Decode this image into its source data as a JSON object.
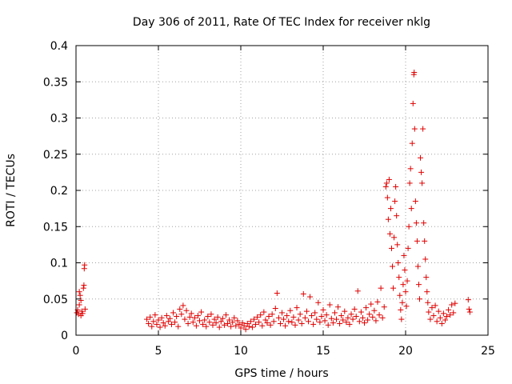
{
  "chart_data": {
    "type": "scatter",
    "title": "Day 306 of 2011, Rate Of TEC Index for receiver nklg",
    "xlabel": "GPS time / hours",
    "ylabel": "ROTI / TECUs",
    "xlim": [
      0,
      25
    ],
    "ylim": [
      0,
      0.4
    ],
    "xticks": [
      0,
      5,
      10,
      15,
      20,
      25
    ],
    "yticks": [
      0,
      0.05,
      0.1,
      0.15,
      0.2,
      0.25,
      0.3,
      0.35,
      0.4
    ],
    "xtick_labels": [
      "0",
      "5",
      "10",
      "15",
      "20",
      "25"
    ],
    "ytick_labels": [
      "0",
      "0.05",
      "0.1",
      "0.15",
      "0.2",
      "0.25",
      "0.3",
      "0.35",
      "0.4"
    ],
    "grid": true,
    "marker": "+",
    "color": "#e00000",
    "series": [
      {
        "name": "ROTI",
        "points": [
          [
            0.05,
            0.031
          ],
          [
            0.1,
            0.035
          ],
          [
            0.15,
            0.029
          ],
          [
            0.2,
            0.042
          ],
          [
            0.25,
            0.055
          ],
          [
            0.3,
            0.048
          ],
          [
            0.35,
            0.033
          ],
          [
            0.4,
            0.03
          ],
          [
            0.45,
            0.065
          ],
          [
            0.48,
            0.069
          ],
          [
            0.5,
            0.092
          ],
          [
            0.52,
            0.097
          ],
          [
            0.55,
            0.036
          ],
          [
            0.2,
            0.06
          ],
          [
            0.3,
            0.027
          ],
          [
            4.3,
            0.022
          ],
          [
            4.4,
            0.016
          ],
          [
            4.5,
            0.025
          ],
          [
            4.6,
            0.012
          ],
          [
            4.7,
            0.019
          ],
          [
            4.8,
            0.028
          ],
          [
            4.9,
            0.015
          ],
          [
            5.0,
            0.021
          ],
          [
            5.1,
            0.011
          ],
          [
            5.2,
            0.024
          ],
          [
            5.3,
            0.017
          ],
          [
            5.4,
            0.013
          ],
          [
            5.5,
            0.027
          ],
          [
            5.6,
            0.019
          ],
          [
            5.7,
            0.023
          ],
          [
            5.8,
            0.015
          ],
          [
            5.9,
            0.031
          ],
          [
            6.0,
            0.018
          ],
          [
            6.1,
            0.026
          ],
          [
            6.2,
            0.012
          ],
          [
            6.3,
            0.036
          ],
          [
            6.4,
            0.029
          ],
          [
            6.5,
            0.041
          ],
          [
            6.6,
            0.022
          ],
          [
            6.7,
            0.034
          ],
          [
            6.8,
            0.016
          ],
          [
            6.9,
            0.025
          ],
          [
            7.0,
            0.03
          ],
          [
            7.1,
            0.018
          ],
          [
            7.2,
            0.024
          ],
          [
            7.3,
            0.013
          ],
          [
            7.4,
            0.027
          ],
          [
            7.5,
            0.02
          ],
          [
            7.6,
            0.032
          ],
          [
            7.7,
            0.015
          ],
          [
            7.8,
            0.021
          ],
          [
            7.9,
            0.012
          ],
          [
            8.0,
            0.026
          ],
          [
            8.1,
            0.018
          ],
          [
            8.2,
            0.029
          ],
          [
            8.3,
            0.014
          ],
          [
            8.4,
            0.022
          ],
          [
            8.5,
            0.017
          ],
          [
            8.6,
            0.025
          ],
          [
            8.7,
            0.011
          ],
          [
            8.8,
            0.019
          ],
          [
            8.9,
            0.023
          ],
          [
            9.0,
            0.014
          ],
          [
            9.1,
            0.028
          ],
          [
            9.2,
            0.016
          ],
          [
            9.3,
            0.021
          ],
          [
            9.4,
            0.012
          ],
          [
            9.5,
            0.018
          ],
          [
            9.6,
            0.024
          ],
          [
            9.7,
            0.013
          ],
          [
            9.8,
            0.02
          ],
          [
            9.9,
            0.015
          ],
          [
            10.0,
            0.01
          ],
          [
            10.1,
            0.017
          ],
          [
            10.2,
            0.013
          ],
          [
            10.3,
            0.008
          ],
          [
            10.4,
            0.016
          ],
          [
            10.5,
            0.012
          ],
          [
            10.6,
            0.019
          ],
          [
            10.7,
            0.011
          ],
          [
            10.8,
            0.022
          ],
          [
            10.9,
            0.015
          ],
          [
            11.0,
            0.025
          ],
          [
            11.1,
            0.018
          ],
          [
            11.2,
            0.028
          ],
          [
            11.3,
            0.013
          ],
          [
            11.4,
            0.032
          ],
          [
            11.5,
            0.021
          ],
          [
            11.6,
            0.017
          ],
          [
            11.7,
            0.026
          ],
          [
            11.8,
            0.014
          ],
          [
            11.9,
            0.029
          ],
          [
            12.0,
            0.019
          ],
          [
            12.1,
            0.037
          ],
          [
            12.2,
            0.058
          ],
          [
            12.3,
            0.024
          ],
          [
            12.4,
            0.016
          ],
          [
            12.5,
            0.031
          ],
          [
            12.6,
            0.022
          ],
          [
            12.7,
            0.013
          ],
          [
            12.8,
            0.027
          ],
          [
            12.9,
            0.019
          ],
          [
            13.0,
            0.034
          ],
          [
            13.1,
            0.018
          ],
          [
            13.2,
            0.025
          ],
          [
            13.3,
            0.014
          ],
          [
            13.4,
            0.038
          ],
          [
            13.5,
            0.021
          ],
          [
            13.6,
            0.029
          ],
          [
            13.7,
            0.016
          ],
          [
            13.8,
            0.057
          ],
          [
            13.9,
            0.024
          ],
          [
            14.0,
            0.033
          ],
          [
            14.1,
            0.019
          ],
          [
            14.2,
            0.053
          ],
          [
            14.3,
            0.027
          ],
          [
            14.4,
            0.015
          ],
          [
            14.5,
            0.031
          ],
          [
            14.6,
            0.022
          ],
          [
            14.7,
            0.045
          ],
          [
            14.8,
            0.018
          ],
          [
            14.9,
            0.026
          ],
          [
            15.0,
            0.035
          ],
          [
            15.1,
            0.02
          ],
          [
            15.2,
            0.028
          ],
          [
            15.3,
            0.014
          ],
          [
            15.4,
            0.042
          ],
          [
            15.5,
            0.023
          ],
          [
            15.6,
            0.017
          ],
          [
            15.7,
            0.031
          ],
          [
            15.8,
            0.022
          ],
          [
            15.9,
            0.039
          ],
          [
            16.0,
            0.016
          ],
          [
            16.1,
            0.027
          ],
          [
            16.2,
            0.021
          ],
          [
            16.3,
            0.033
          ],
          [
            16.4,
            0.018
          ],
          [
            16.5,
            0.024
          ],
          [
            16.6,
            0.015
          ],
          [
            16.7,
            0.029
          ],
          [
            16.8,
            0.022
          ],
          [
            16.9,
            0.036
          ],
          [
            17.0,
            0.026
          ],
          [
            17.1,
            0.061
          ],
          [
            17.2,
            0.019
          ],
          [
            17.3,
            0.032
          ],
          [
            17.4,
            0.024
          ],
          [
            17.5,
            0.017
          ],
          [
            17.6,
            0.038
          ],
          [
            17.7,
            0.021
          ],
          [
            17.8,
            0.029
          ],
          [
            17.9,
            0.043
          ],
          [
            18.0,
            0.025
          ],
          [
            18.1,
            0.034
          ],
          [
            18.2,
            0.02
          ],
          [
            18.3,
            0.046
          ],
          [
            18.4,
            0.028
          ],
          [
            18.5,
            0.065
          ],
          [
            18.6,
            0.024
          ],
          [
            18.7,
            0.039
          ],
          [
            18.8,
            0.205
          ],
          [
            18.85,
            0.21
          ],
          [
            18.9,
            0.19
          ],
          [
            18.95,
            0.16
          ],
          [
            19.0,
            0.215
          ],
          [
            19.05,
            0.14
          ],
          [
            19.1,
            0.175
          ],
          [
            19.15,
            0.12
          ],
          [
            19.2,
            0.095
          ],
          [
            19.25,
            0.065
          ],
          [
            19.3,
            0.135
          ],
          [
            19.35,
            0.185
          ],
          [
            19.4,
            0.205
          ],
          [
            19.45,
            0.165
          ],
          [
            19.5,
            0.125
          ],
          [
            19.55,
            0.1
          ],
          [
            19.6,
            0.08
          ],
          [
            19.65,
            0.055
          ],
          [
            19.7,
            0.035
          ],
          [
            19.75,
            0.022
          ],
          [
            19.8,
            0.045
          ],
          [
            19.85,
            0.07
          ],
          [
            19.9,
            0.11
          ],
          [
            19.95,
            0.09
          ],
          [
            20.0,
            0.06
          ],
          [
            20.05,
            0.04
          ],
          [
            20.1,
            0.075
          ],
          [
            20.15,
            0.12
          ],
          [
            20.2,
            0.15
          ],
          [
            20.25,
            0.21
          ],
          [
            20.3,
            0.23
          ],
          [
            20.35,
            0.175
          ],
          [
            20.4,
            0.265
          ],
          [
            20.45,
            0.32
          ],
          [
            20.5,
            0.36
          ],
          [
            20.52,
            0.363
          ],
          [
            20.55,
            0.285
          ],
          [
            20.6,
            0.185
          ],
          [
            20.65,
            0.155
          ],
          [
            20.7,
            0.13
          ],
          [
            20.75,
            0.095
          ],
          [
            20.8,
            0.07
          ],
          [
            20.85,
            0.05
          ],
          [
            20.9,
            0.245
          ],
          [
            20.95,
            0.225
          ],
          [
            21.0,
            0.21
          ],
          [
            21.05,
            0.285
          ],
          [
            21.1,
            0.155
          ],
          [
            21.15,
            0.13
          ],
          [
            21.2,
            0.105
          ],
          [
            21.25,
            0.08
          ],
          [
            21.3,
            0.06
          ],
          [
            21.35,
            0.045
          ],
          [
            21.4,
            0.032
          ],
          [
            21.5,
            0.022
          ],
          [
            21.6,
            0.038
          ],
          [
            21.7,
            0.027
          ],
          [
            21.8,
            0.041
          ],
          [
            21.9,
            0.019
          ],
          [
            22.0,
            0.033
          ],
          [
            22.1,
            0.024
          ],
          [
            22.2,
            0.016
          ],
          [
            22.3,
            0.03
          ],
          [
            22.4,
            0.021
          ],
          [
            22.5,
            0.026
          ],
          [
            22.6,
            0.035
          ],
          [
            22.7,
            0.028
          ],
          [
            22.8,
            0.042
          ],
          [
            22.9,
            0.031
          ],
          [
            23.0,
            0.044
          ],
          [
            23.8,
            0.049
          ],
          [
            23.85,
            0.036
          ],
          [
            23.9,
            0.032
          ]
        ]
      }
    ]
  }
}
